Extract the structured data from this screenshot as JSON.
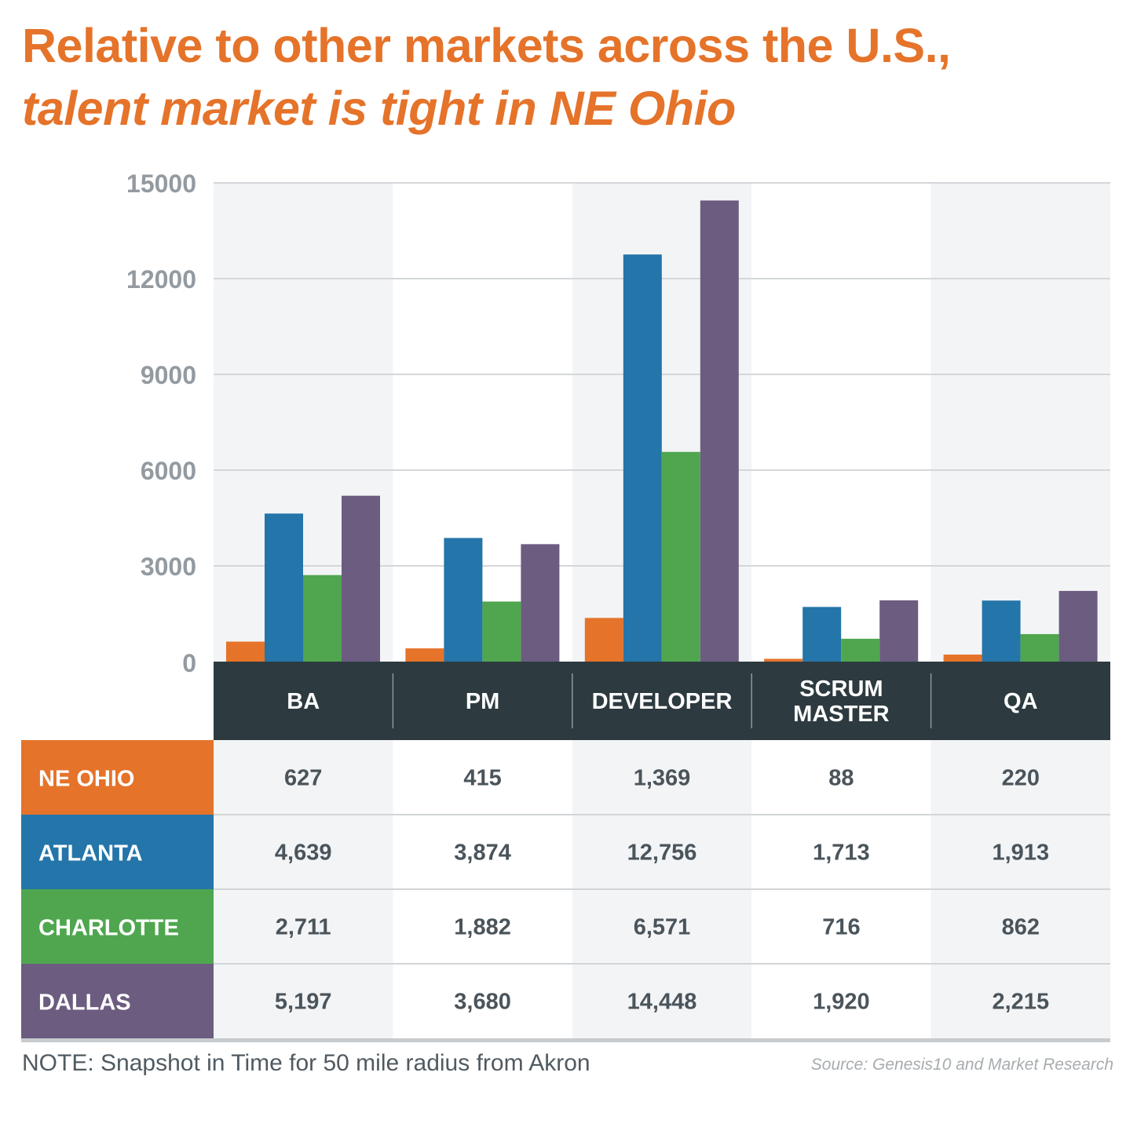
{
  "title": {
    "line1": "Relative to other markets across the U.S.,",
    "line2": "talent market is tight in NE Ohio"
  },
  "note": "NOTE: Snapshot in Time for 50 mile radius from Akron",
  "source": "Source: Genesis10 and Market Research",
  "chart_data": {
    "type": "bar",
    "categories": [
      "BA",
      "PM",
      "DEVELOPER",
      "SCRUM MASTER",
      "QA"
    ],
    "category_lines": [
      [
        "BA"
      ],
      [
        "PM"
      ],
      [
        "DEVELOPER"
      ],
      [
        "SCRUM",
        "MASTER"
      ],
      [
        "QA"
      ]
    ],
    "ylim": [
      0,
      15000
    ],
    "yticks": [
      0,
      3000,
      6000,
      9000,
      12000,
      15000
    ],
    "grid": true,
    "series": [
      {
        "name": "NE OHIO",
        "color": "#e5732a",
        "values": [
          627,
          415,
          1369,
          88,
          220
        ],
        "labels": [
          "627",
          "415",
          "1,369",
          "88",
          "220"
        ]
      },
      {
        "name": "ATLANTA",
        "color": "#2475a9",
        "values": [
          4639,
          3874,
          12756,
          1713,
          1913
        ],
        "labels": [
          "4,639",
          "3,874",
          "12,756",
          "1,713",
          "1,913"
        ]
      },
      {
        "name": "CHARLOTTE",
        "color": "#4fa64f",
        "values": [
          2711,
          1882,
          6571,
          716,
          862
        ],
        "labels": [
          "2,711",
          "1,882",
          "6,571",
          "716",
          "862"
        ]
      },
      {
        "name": "DALLAS",
        "color": "#6c5c80",
        "values": [
          5197,
          3680,
          14448,
          1920,
          2215
        ],
        "labels": [
          "5,197",
          "3,680",
          "14,448",
          "1,920",
          "2,215"
        ]
      }
    ]
  }
}
